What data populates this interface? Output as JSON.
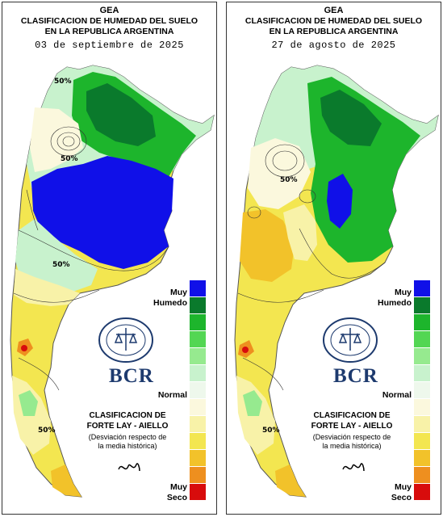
{
  "header": {
    "org": "GEA",
    "title_line1": "CLASIFICACION DE HUMEDAD DEL SUELO",
    "title_line2": "EN LA REPUBLICA ARGENTINA"
  },
  "panels": [
    {
      "date": "03 de septiembre de 2025",
      "contour_label": "50%"
    },
    {
      "date": "27 de agosto de 2025",
      "contour_label": "50%"
    }
  ],
  "legend": {
    "wet_label_line1": "Muy",
    "wet_label_line2": "Humedo",
    "normal_label": "Normal",
    "dry_label_line1": "Muy",
    "dry_label_line2": "Seco",
    "colors": [
      "#1010e8",
      "#0a7a2c",
      "#1db52c",
      "#53d653",
      "#96ea8f",
      "#c8f2cd",
      "#eef8ec",
      "#fbf8dd",
      "#f8f2a8",
      "#f3e650",
      "#f2c22a",
      "#ee8f1f",
      "#d80c0c"
    ]
  },
  "branding": {
    "bcr_text": "BCR",
    "seal_text": "BOLSA DE COMERCIO DE ROSARIO",
    "classification_line1": "CLASIFICACION DE",
    "classification_line2": "FORTE LAY - AIELLO",
    "note_line1": "(Desviación respecto de",
    "note_line2": "la media histórica)"
  }
}
